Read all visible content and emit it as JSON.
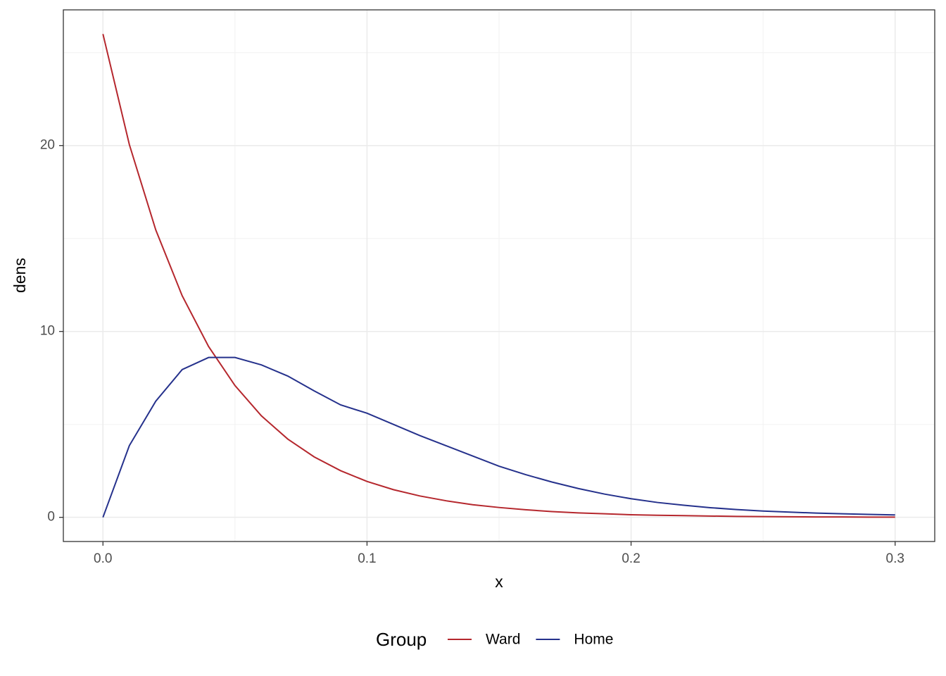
{
  "chart_data": {
    "type": "line",
    "x_label": "x",
    "y_label": "dens",
    "legend_title": "Group",
    "legend_position": "bottom",
    "x": [
      0,
      0.01,
      0.02,
      0.03,
      0.04,
      0.05,
      0.06,
      0.07,
      0.08,
      0.09,
      0.1,
      0.11,
      0.12,
      0.13,
      0.14,
      0.15,
      0.16,
      0.17,
      0.18,
      0.19,
      0.2,
      0.21,
      0.22,
      0.23,
      0.24,
      0.25,
      0.26,
      0.27,
      0.28,
      0.29,
      0.3
    ],
    "series": [
      {
        "name": "Ward",
        "color": "#B5272D",
        "values": [
          26,
          20.05,
          15.46,
          11.92,
          9.19,
          7.09,
          5.46,
          4.21,
          3.25,
          2.51,
          1.93,
          1.49,
          1.15,
          0.89,
          0.68,
          0.53,
          0.41,
          0.31,
          0.24,
          0.19,
          0.14,
          0.11,
          0.09,
          0.07,
          0.05,
          0.04,
          0.03,
          0.02,
          0.02,
          0.01,
          0.01
        ]
      },
      {
        "name": "Home",
        "color": "#25318C",
        "values": [
          0,
          3.86,
          6.25,
          7.95,
          8.6,
          8.6,
          8.2,
          7.6,
          6.8,
          6.05,
          5.6,
          5.0,
          4.4,
          3.85,
          3.3,
          2.75,
          2.3,
          1.9,
          1.55,
          1.25,
          1.0,
          0.8,
          0.65,
          0.52,
          0.42,
          0.34,
          0.28,
          0.23,
          0.19,
          0.16,
          0.13
        ]
      }
    ],
    "xlim": [
      -0.015,
      0.315
    ],
    "xticks": [
      {
        "value": 0,
        "label": "0.0"
      },
      0.1,
      0.2,
      0.3
    ],
    "ylim": [
      -1.3,
      27.3
    ],
    "yticks": [
      0,
      10,
      20
    ],
    "grid": true
  }
}
